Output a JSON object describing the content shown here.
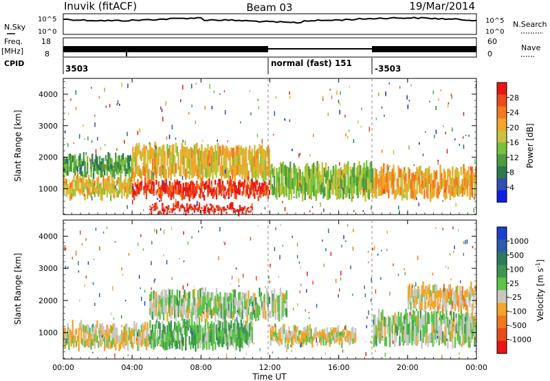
{
  "header": {
    "station": "Inuvik (fitACF)",
    "beam": "Beam 03",
    "date": "19/Mar/2014"
  },
  "strips": {
    "nsky": {
      "label": "N.Sky",
      "ticks": [
        "10^5",
        "10^0"
      ]
    },
    "nsearch": {
      "label": "N.Search",
      "ticks": [
        "10^5",
        "10^0"
      ]
    },
    "freq": {
      "label_top": "Freq.",
      "label_bottom": "[MHz]",
      "ticks": [
        "18",
        "8"
      ]
    },
    "nave": {
      "label": "Nave",
      "ticks": [
        "60",
        "0"
      ]
    },
    "cpid": {
      "label": "CPID",
      "entries": [
        {
          "text": "3503",
          "hour": 0
        },
        {
          "text": "normal (fast) 151",
          "hour": 12
        },
        {
          "text": "-3503",
          "hour": 18
        }
      ]
    }
  },
  "colorbars": {
    "power": {
      "label": "Power [dB]",
      "ticks": [
        "28",
        "24",
        "20",
        "16",
        "12",
        "8",
        "4"
      ],
      "colors": [
        "#1020e6",
        "#2e4fb0",
        "#2e7a4e",
        "#4e9c3e",
        "#79c13b",
        "#c9c23a",
        "#f1a52a",
        "#f07a1f",
        "#ea4b1c",
        "#e81616"
      ]
    },
    "velocity": {
      "label": "Velocity [m s",
      "label_sup": "-1",
      "label_end": "]",
      "ticks": [
        "1000",
        "500",
        "100",
        "25",
        "-25",
        "-100",
        "-500",
        "-1000"
      ],
      "colors": [
        "#1d3fd0",
        "#2c5caa",
        "#2e7a5e",
        "#3f9650",
        "#5ec34a",
        "#c8c8c0",
        "#f2a52a",
        "#f07a1f",
        "#ea4b1c",
        "#e81616"
      ]
    }
  },
  "chart_data": [
    {
      "type": "heatmap",
      "name": "power",
      "ylabel": "Slant Range [km]",
      "ylim": [
        180,
        4500
      ],
      "yticks": [
        1000,
        2000,
        3000,
        4000
      ],
      "xlim": [
        0,
        24
      ],
      "xticks": [
        "00:00",
        "04:00",
        "08:00",
        "12:00",
        "16:00",
        "20:00",
        "00:00"
      ],
      "colorscale": "Power [dB]",
      "value_range": [
        0,
        30
      ],
      "bands": [
        {
          "x": [
            0,
            4
          ],
          "range": [
            700,
            1400
          ],
          "value": 18
        },
        {
          "x": [
            0,
            4
          ],
          "range": [
            1400,
            2100
          ],
          "value": 10
        },
        {
          "x": [
            4,
            12
          ],
          "range": [
            700,
            1300
          ],
          "value": 27
        },
        {
          "x": [
            4,
            12
          ],
          "range": [
            1300,
            2400
          ],
          "value": 18
        },
        {
          "x": [
            5,
            11
          ],
          "range": [
            200,
            500
          ],
          "value": 28
        },
        {
          "x": [
            12,
            18
          ],
          "range": [
            700,
            1800
          ],
          "value": 14
        },
        {
          "x": [
            18,
            24
          ],
          "range": [
            700,
            1700
          ],
          "value": 20
        }
      ]
    },
    {
      "type": "heatmap",
      "name": "velocity",
      "ylabel": "Slant Range [km]",
      "xlabel": "Time UT",
      "ylim": [
        180,
        4500
      ],
      "yticks": [
        1000,
        2000,
        3000,
        4000
      ],
      "xlim": [
        0,
        24
      ],
      "xticks": [
        "00:00",
        "04:00",
        "08:00",
        "12:00",
        "16:00",
        "20:00",
        "00:00"
      ],
      "colorscale": "Velocity [m s-1]",
      "value_range": [
        -1000,
        1000
      ],
      "bands": [
        {
          "x": [
            0,
            5
          ],
          "range": [
            500,
            1300
          ],
          "value": -150
        },
        {
          "x": [
            5,
            11
          ],
          "range": [
            500,
            1400
          ],
          "value": 150
        },
        {
          "x": [
            5,
            13
          ],
          "range": [
            1400,
            2300
          ],
          "value": 0
        },
        {
          "x": [
            12,
            17
          ],
          "range": [
            600,
            1200
          ],
          "value": -150
        },
        {
          "x": [
            18,
            24
          ],
          "range": [
            600,
            1700
          ],
          "value": 0
        },
        {
          "x": [
            20,
            24
          ],
          "range": [
            1700,
            2500
          ],
          "value": -200
        }
      ]
    }
  ]
}
